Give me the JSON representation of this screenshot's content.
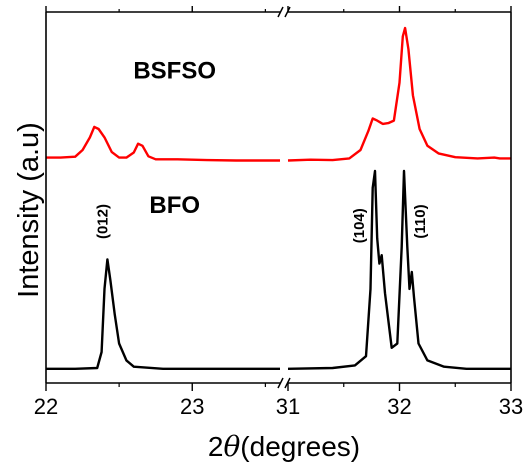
{
  "chart_data": {
    "type": "line",
    "xlabel_prefix": "2",
    "xlabel_symbol": "θ",
    "xlabel_suffix": "(degrees)",
    "ylabel": "Intensity (a.u)",
    "x_break": "//",
    "grid": false,
    "panels": [
      {
        "xlim": [
          22,
          23.6
        ],
        "xticks": [
          22,
          23
        ]
      },
      {
        "xlim": [
          31,
          33
        ],
        "xticks": [
          31,
          32,
          33
        ]
      }
    ],
    "series": [
      {
        "name": "BSFSO",
        "color": "#ff0000",
        "panel1": [
          [
            22.0,
            0.512
          ],
          [
            22.1,
            0.512
          ],
          [
            22.2,
            0.514
          ],
          [
            22.25,
            0.53
          ],
          [
            22.3,
            0.56
          ],
          [
            22.33,
            0.585
          ],
          [
            22.36,
            0.58
          ],
          [
            22.4,
            0.56
          ],
          [
            22.45,
            0.525
          ],
          [
            22.5,
            0.512
          ],
          [
            22.55,
            0.512
          ],
          [
            22.6,
            0.524
          ],
          [
            22.63,
            0.545
          ],
          [
            22.66,
            0.54
          ],
          [
            22.7,
            0.515
          ],
          [
            22.75,
            0.508
          ],
          [
            22.9,
            0.508
          ],
          [
            23.1,
            0.506
          ],
          [
            23.3,
            0.505
          ],
          [
            23.6,
            0.505
          ]
        ],
        "panel2": [
          [
            31.0,
            0.505
          ],
          [
            31.2,
            0.507
          ],
          [
            31.4,
            0.506
          ],
          [
            31.55,
            0.51
          ],
          [
            31.65,
            0.53
          ],
          [
            31.72,
            0.575
          ],
          [
            31.76,
            0.605
          ],
          [
            31.8,
            0.6
          ],
          [
            31.85,
            0.592
          ],
          [
            31.9,
            0.594
          ],
          [
            31.95,
            0.6
          ],
          [
            32.0,
            0.69
          ],
          [
            32.03,
            0.8
          ],
          [
            32.05,
            0.82
          ],
          [
            32.08,
            0.77
          ],
          [
            32.12,
            0.66
          ],
          [
            32.18,
            0.58
          ],
          [
            32.25,
            0.54
          ],
          [
            32.35,
            0.522
          ],
          [
            32.5,
            0.513
          ],
          [
            32.7,
            0.51
          ],
          [
            32.85,
            0.512
          ],
          [
            32.9,
            0.51
          ],
          [
            33.0,
            0.51
          ]
        ]
      },
      {
        "name": "BFO",
        "color": "#000000",
        "panel1": [
          [
            22.0,
            0.01
          ],
          [
            22.2,
            0.01
          ],
          [
            22.35,
            0.012
          ],
          [
            22.38,
            0.05
          ],
          [
            22.4,
            0.2
          ],
          [
            22.42,
            0.27
          ],
          [
            22.44,
            0.22
          ],
          [
            22.47,
            0.14
          ],
          [
            22.5,
            0.07
          ],
          [
            22.55,
            0.03
          ],
          [
            22.6,
            0.015
          ],
          [
            22.8,
            0.01
          ],
          [
            23.0,
            0.01
          ],
          [
            23.3,
            0.01
          ],
          [
            23.6,
            0.01
          ]
        ],
        "panel2": [
          [
            31.0,
            0.01
          ],
          [
            31.4,
            0.012
          ],
          [
            31.6,
            0.018
          ],
          [
            31.7,
            0.04
          ],
          [
            31.74,
            0.2
          ],
          [
            31.76,
            0.44
          ],
          [
            31.78,
            0.48
          ],
          [
            31.8,
            0.32
          ],
          [
            31.82,
            0.26
          ],
          [
            31.84,
            0.28
          ],
          [
            31.87,
            0.19
          ],
          [
            31.93,
            0.06
          ],
          [
            31.98,
            0.07
          ],
          [
            32.02,
            0.3
          ],
          [
            32.04,
            0.48
          ],
          [
            32.07,
            0.3
          ],
          [
            32.09,
            0.2
          ],
          [
            32.11,
            0.24
          ],
          [
            32.13,
            0.18
          ],
          [
            32.17,
            0.07
          ],
          [
            32.25,
            0.03
          ],
          [
            32.4,
            0.015
          ],
          [
            32.6,
            0.01
          ],
          [
            33.0,
            0.01
          ]
        ]
      }
    ],
    "annotations": [
      {
        "id": "bsfso",
        "text": "BSFSO",
        "x": 22.88,
        "y": 0.7
      },
      {
        "id": "bfo",
        "text": "BFO",
        "x": 22.88,
        "y": 0.38
      },
      {
        "id": "012",
        "text": "(012)",
        "x": 22.42,
        "y": 0.36
      },
      {
        "id": "104",
        "text": "(104)",
        "x": 31.68,
        "y": 0.35
      },
      {
        "id": "110",
        "text": "(110)",
        "x": 32.23,
        "y": 0.36
      }
    ]
  }
}
